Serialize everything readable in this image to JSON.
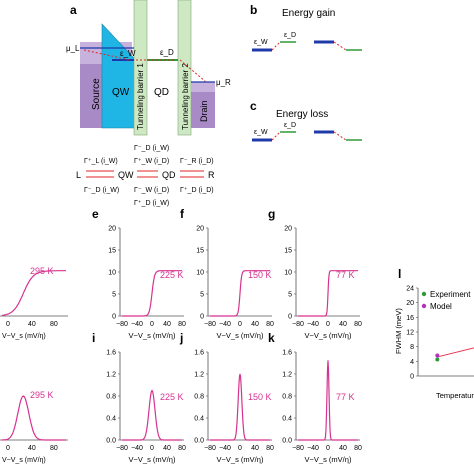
{
  "panel_letters": {
    "a": "a",
    "b": "b",
    "c": "c",
    "e": "e",
    "f": "f",
    "g": "g",
    "i": "i",
    "j": "j",
    "k": "k",
    "l": "l"
  },
  "schematic": {
    "mu_L": "μ_L",
    "mu_R": "μ_R",
    "eps_W": "ε_W",
    "eps_D": "ε_D",
    "source": "Source",
    "qw": "QW",
    "qd": "QD",
    "drain": "Drain",
    "barrier1": "Tunneling barrier 1",
    "barrier2": "Tunneling barrier 2"
  },
  "rates": {
    "top_mid": "Γ⁻_D (i_W)",
    "row1_left": "Γ⁺_L (i_W)",
    "row1_mid": "Γ⁺_W (i_D)",
    "row1_right": "Γ⁻_R (i_D)",
    "row2_left": "Γ⁻_D (i_W)",
    "row2_mid": "Γ⁻_W (i_D)",
    "row2_right": "Γ⁺_D (i_D)",
    "bottom_mid": "Γ⁺_D (i_W)",
    "L": "L",
    "QW": "QW",
    "QD": "QD",
    "R": "R"
  },
  "energy_gain": {
    "title": "Energy gain",
    "eps_W": "ε_W",
    "eps_D": "ε_D"
  },
  "energy_loss": {
    "title": "Energy loss",
    "eps_W": "ε_W",
    "eps_D": "ε_D"
  },
  "xlabel": "V−V_s (mV/η)",
  "xticks": [
    "−80",
    "−40",
    "0",
    "40",
    "80"
  ],
  "yticks_top": [
    "0",
    "5",
    "10",
    "15",
    "20"
  ],
  "yticks_bottom": [
    "0.0",
    "0.4",
    "0.8",
    "1.2",
    "1.6"
  ],
  "colors": {
    "curve": "#d6338f",
    "fit": "#e8324f",
    "exp": "#2e9b3a",
    "model": "#b52fb8",
    "qw": "#1fb6e6",
    "source": "#a88bc6",
    "barrier": "#cfe8c4",
    "red": "#e02424",
    "blue": "#1f3aa8"
  },
  "chart_data": [
    {
      "type": "line",
      "panel": "e",
      "temperature": "225 K",
      "kind": "current",
      "x": [
        -90,
        -40,
        -20,
        -10,
        0,
        10,
        20,
        40,
        90
      ],
      "y": [
        0,
        0,
        0.2,
        2.0,
        5.2,
        8.4,
        10.0,
        10.3,
        10.3
      ],
      "xlim": [
        -90,
        90
      ],
      "ylim": [
        0,
        20
      ]
    },
    {
      "type": "line",
      "panel": "f",
      "temperature": "150 K",
      "kind": "current",
      "x": [
        -90,
        -40,
        -15,
        -7,
        0,
        7,
        15,
        40,
        90
      ],
      "y": [
        0,
        0,
        0.1,
        1.3,
        5.2,
        9.0,
        10.2,
        10.3,
        10.3
      ],
      "xlim": [
        -90,
        90
      ],
      "ylim": [
        0,
        20
      ]
    },
    {
      "type": "line",
      "panel": "g",
      "temperature": "77 K",
      "kind": "current",
      "x": [
        -90,
        -40,
        -8,
        -3,
        0,
        3,
        8,
        40,
        90
      ],
      "y": [
        0,
        0,
        0.1,
        1.5,
        5.2,
        9.0,
        10.2,
        10.3,
        10.3
      ],
      "xlim": [
        -90,
        90
      ],
      "ylim": [
        0,
        20
      ]
    },
    {
      "type": "line",
      "panel": "i",
      "temperature": "225 K",
      "kind": "conductance",
      "x": [
        -90,
        -40,
        -20,
        -10,
        0,
        10,
        20,
        40,
        90
      ],
      "y": [
        0,
        0,
        0.05,
        0.45,
        0.9,
        0.45,
        0.05,
        0,
        0
      ],
      "xlim": [
        -90,
        90
      ],
      "ylim": [
        0,
        1.6
      ]
    },
    {
      "type": "line",
      "panel": "j",
      "temperature": "150 K",
      "kind": "conductance",
      "x": [
        -90,
        -40,
        -12,
        -6,
        0,
        6,
        12,
        40,
        90
      ],
      "y": [
        0,
        0,
        0.04,
        0.55,
        1.2,
        0.55,
        0.04,
        0,
        0
      ],
      "xlim": [
        -90,
        90
      ],
      "ylim": [
        0,
        1.6
      ]
    },
    {
      "type": "line",
      "panel": "k",
      "temperature": "77 K",
      "kind": "conductance",
      "x": [
        -90,
        -40,
        -6,
        -3,
        0,
        3,
        6,
        40,
        90
      ],
      "y": [
        0,
        0,
        0.05,
        0.65,
        1.45,
        0.65,
        0.05,
        0,
        0
      ],
      "xlim": [
        -90,
        90
      ],
      "ylim": [
        0,
        1.6
      ]
    },
    {
      "type": "scatter",
      "panel": "l",
      "ylabel": "FWHM (meV)",
      "xlabel": "Temperature",
      "yticks": [
        "0",
        "4",
        "8",
        "12",
        "16",
        "20",
        "24"
      ],
      "ylim": [
        0,
        24
      ],
      "series": [
        {
          "name": "Experiment",
          "x": [
            77,
            150
          ],
          "y": [
            4.5,
            7.5
          ]
        },
        {
          "name": "Model",
          "x": [
            77,
            150
          ],
          "y": [
            5.6,
            8.2
          ]
        }
      ],
      "fit": {
        "x": [
          77,
          175
        ],
        "y": [
          5.2,
          9.6
        ]
      }
    }
  ],
  "left_partial_panels": {
    "top_temp": "295 K",
    "bottom_temp": "295 K",
    "xticks_partial": [
      "0",
      "40",
      "80"
    ]
  }
}
